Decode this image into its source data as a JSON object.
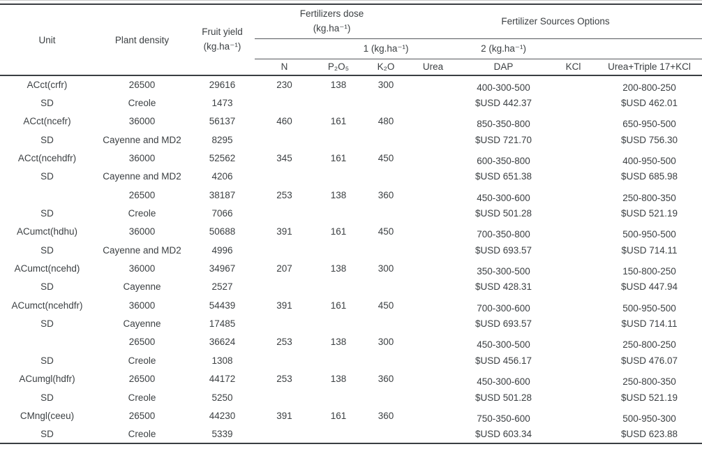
{
  "table": {
    "header": {
      "unit": "Unit",
      "plant_density": "Plant density",
      "fruit_yield_line1": "Fruit yield",
      "fruit_yield_line2": "(kg.ha⁻¹)",
      "fertilizers_dose_line1": "Fertilizers dose",
      "fertilizers_dose_line2": "(kg.ha⁻¹)",
      "fertilizer_sources": "Fertilizer Sources Options",
      "group1": "1 (kg.ha⁻¹)",
      "group2": "2 (kg.ha⁻¹)",
      "col_n": "N",
      "col_p2o5": "P₂O₅",
      "col_k2o": "K₂O",
      "col_urea": "Urea",
      "col_dap": "DAP",
      "col_kcl": "KCl",
      "col_urea_triple": "Urea+Triple 17+KCl"
    },
    "rows": [
      [
        "ACct(crfr)",
        "26500",
        "29616",
        "230",
        "138",
        "300",
        "",
        "400-300-500",
        "",
        "200-800-250"
      ],
      [
        "SD",
        "Creole",
        "1473",
        "",
        "",
        "",
        "",
        "$USD 442.37",
        "",
        "$USD 462.01"
      ],
      [
        "ACct(ncefr)",
        "36000",
        "56137",
        "460",
        "161",
        "480",
        "",
        "850-350-800",
        "",
        "650-950-500"
      ],
      [
        "SD",
        "Cayenne and MD2",
        "8295",
        "",
        "",
        "",
        "",
        "$USD 721.70",
        "",
        "$USD 756.30"
      ],
      [
        "ACct(ncehdfr)",
        "36000",
        "52562",
        "345",
        "161",
        "450",
        "",
        "600-350-800",
        "",
        "400-950-500"
      ],
      [
        "SD",
        "Cayenne and MD2",
        "4206",
        "",
        "",
        "",
        "",
        "$USD 651.38",
        "",
        "$USD 685.98"
      ],
      [
        "",
        "26500",
        "38187",
        "253",
        "138",
        "360",
        "",
        "450-300-600",
        "",
        "250-800-350"
      ],
      [
        "SD",
        "Creole",
        "7066",
        "",
        "",
        "",
        "",
        "$USD 501.28",
        "",
        "$USD 521.19"
      ],
      [
        "ACumct(hdhu)",
        "36000",
        "50688",
        "391",
        "161",
        "450",
        "",
        "700-350-800",
        "",
        "500-950-500"
      ],
      [
        "SD",
        "Cayenne and MD2",
        "4996",
        "",
        "",
        "",
        "",
        "$USD 693.57",
        "",
        "$USD 714.11"
      ],
      [
        "ACumct(ncehd)",
        "36000",
        "34967",
        "207",
        "138",
        "300",
        "",
        "350-300-500",
        "",
        "150-800-250"
      ],
      [
        "SD",
        "Cayenne",
        "2527",
        "",
        "",
        "",
        "",
        "$USD 428.31",
        "",
        "$USD 447.94"
      ],
      [
        "ACumct(ncehdfr)",
        "36000",
        "54439",
        "391",
        "161",
        "450",
        "",
        "700-300-600",
        "",
        "500-950-500"
      ],
      [
        "SD",
        "Cayenne",
        "17485",
        "",
        "",
        "",
        "",
        "$USD 693.57",
        "",
        "$USD 714.11"
      ],
      [
        "",
        "26500",
        "36624",
        "253",
        "138",
        "300",
        "",
        "450-300-500",
        "",
        "250-800-250"
      ],
      [
        "SD",
        "Creole",
        "1308",
        "",
        "",
        "",
        "",
        "$USD 456.17",
        "",
        "$USD 476.07"
      ],
      [
        "ACumgl(hdfr)",
        "26500",
        "44172",
        "253",
        "138",
        "360",
        "",
        "450-300-600",
        "",
        "250-800-350"
      ],
      [
        "SD",
        "Creole",
        "5250",
        "",
        "",
        "",
        "",
        "$USD 501.28",
        "",
        "$USD 521.19"
      ],
      [
        "CMngl(ceeu)",
        "26500",
        "44230",
        "391",
        "161",
        "360",
        "",
        "750-350-600",
        "",
        "500-950-300"
      ],
      [
        "SD",
        "Creole",
        "5339",
        "",
        "",
        "",
        "",
        "$USD 603.34",
        "",
        "$USD 623.88"
      ]
    ]
  }
}
